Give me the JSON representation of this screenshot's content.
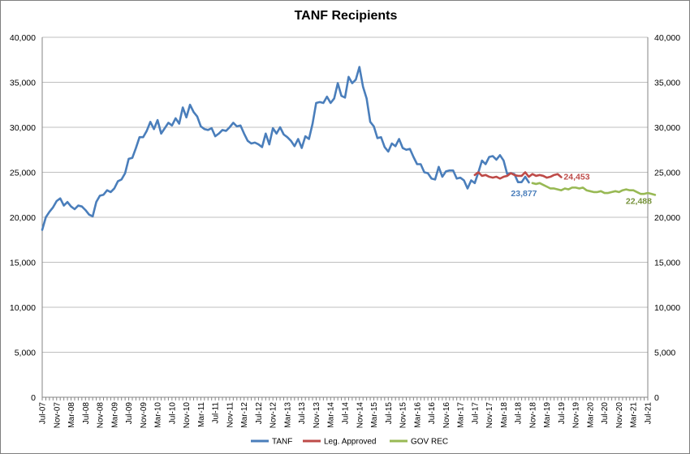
{
  "chart_data": {
    "type": "line",
    "title": "TANF Recipients",
    "xlabel": "",
    "ylabel": "",
    "ylim": [
      0,
      40000
    ],
    "yticks": [
      0,
      5000,
      10000,
      15000,
      20000,
      25000,
      30000,
      35000,
      40000
    ],
    "ytick_labels": [
      "0",
      "5,000",
      "10,000",
      "15,000",
      "20,000",
      "25,000",
      "30,000",
      "35,000",
      "40,000"
    ],
    "xlim": [
      "2007-07",
      "2021-07"
    ],
    "xtick_labels": [
      "Jul-07",
      "Nov-07",
      "Mar-08",
      "Jul-08",
      "Nov-08",
      "Mar-09",
      "Jul-09",
      "Nov-09",
      "Mar-10",
      "Jul-10",
      "Nov-10",
      "Mar-11",
      "Jul-11",
      "Nov-11",
      "Mar-12",
      "Jul-12",
      "Nov-12",
      "Mar-13",
      "Jul-13",
      "Nov-13",
      "Mar-14",
      "Jul-14",
      "Nov-14",
      "Mar-15",
      "Jul-15",
      "Nov-15",
      "Mar-16",
      "Jul-16",
      "Nov-16",
      "Mar-17",
      "Jul-17",
      "Nov-17",
      "Mar-18",
      "Jul-18",
      "Nov-18",
      "Mar-19",
      "Jul-19",
      "Nov-19",
      "Mar-20",
      "Jul-20",
      "Nov-20",
      "Mar-21",
      "Jul-21"
    ],
    "grid": true,
    "legend_position": "bottom",
    "series": [
      {
        "name": "TANF",
        "color": "#4a7ebb",
        "start": "2007-07",
        "values": [
          18600,
          20000,
          20600,
          21100,
          21800,
          22100,
          21300,
          21700,
          21200,
          20900,
          21300,
          21200,
          20800,
          20300,
          20100,
          21700,
          22400,
          22500,
          23000,
          22800,
          23200,
          24000,
          24200,
          24900,
          26500,
          26600,
          27700,
          28900,
          28900,
          29600,
          30600,
          29800,
          30800,
          29300,
          29900,
          30500,
          30200,
          31000,
          30400,
          32200,
          31100,
          32500,
          31700,
          31200,
          30100,
          29800,
          29700,
          29900,
          29000,
          29300,
          29700,
          29600,
          30000,
          30500,
          30100,
          30200,
          29300,
          28500,
          28200,
          28300,
          28100,
          27800,
          29300,
          28100,
          29900,
          29300,
          30000,
          29200,
          28900,
          28500,
          27900,
          28700,
          27700,
          29000,
          28700,
          30400,
          32700,
          32800,
          32700,
          33400,
          32700,
          33200,
          34900,
          33500,
          33300,
          35600,
          34900,
          35300,
          36700,
          34500,
          33200,
          30600,
          30100,
          28800,
          28900,
          27800,
          27300,
          28200,
          27900,
          28700,
          27700,
          27500,
          27600,
          26700,
          25900,
          25900,
          25000,
          24900,
          24300,
          24200,
          25600,
          24500,
          25100,
          25200,
          25200,
          24300,
          24400,
          24100,
          23200,
          24100,
          23800,
          25000,
          26300,
          25900,
          26700,
          26800,
          26400,
          26900,
          26300,
          24800,
          24900,
          24800,
          23900,
          23900,
          24500,
          23877
        ]
      },
      {
        "name": "Leg. Approved",
        "color": "#be4b48",
        "start": "2017-07",
        "values": [
          24700,
          25000,
          24600,
          24700,
          24500,
          24400,
          24500,
          24300,
          24500,
          24600,
          24900,
          24700,
          24600,
          24600,
          25000,
          24500,
          24800,
          24600,
          24700,
          24600,
          24400,
          24500,
          24700,
          24800,
          24453
        ]
      },
      {
        "name": "GOV REC",
        "color": "#98b954",
        "start": "2018-11",
        "values": [
          23800,
          23700,
          23800,
          23600,
          23400,
          23200,
          23200,
          23100,
          23000,
          23200,
          23100,
          23300,
          23300,
          23200,
          23300,
          23000,
          22900,
          22800,
          22800,
          22900,
          22700,
          22700,
          22800,
          22900,
          22800,
          23000,
          23100,
          23000,
          23000,
          22800,
          22600,
          22600,
          22700,
          22600,
          22488
        ]
      }
    ],
    "annotations": [
      {
        "text": "23,877",
        "series": "TANF",
        "color": "#4a7ebb"
      },
      {
        "text": "24,453",
        "series": "Leg. Approved",
        "color": "#be4b48"
      },
      {
        "text": "22,488",
        "series": "GOV REC",
        "color": "#77933c"
      }
    ]
  }
}
